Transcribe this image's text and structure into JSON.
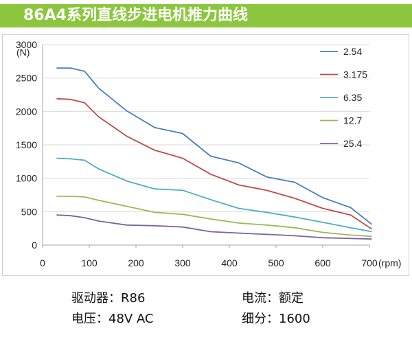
{
  "banner": {
    "title": "86A4系列直线步进电机推力曲线",
    "color": "#8cc63f"
  },
  "chart_data": {
    "type": "line",
    "ylabel": "(N)",
    "xlabel": "(rpm)",
    "xlim": [
      0,
      700
    ],
    "ylim": [
      0,
      3000
    ],
    "x_ticks": [
      0,
      100,
      200,
      300,
      400,
      500,
      600,
      700
    ],
    "y_ticks": [
      0,
      500,
      1000,
      1500,
      2000,
      2500,
      3000
    ],
    "grid": "horizontal",
    "legend": "right",
    "x": [
      30,
      60,
      90,
      120,
      180,
      240,
      300,
      360,
      420,
      480,
      540,
      600,
      660,
      705
    ],
    "series": [
      {
        "name": "2.54",
        "color": "#4a7ebb",
        "values": [
          2650,
          2650,
          2600,
          2350,
          2010,
          1760,
          1670,
          1330,
          1230,
          1020,
          940,
          710,
          560,
          310
        ]
      },
      {
        "name": "3.175",
        "color": "#be4b48",
        "values": [
          2190,
          2180,
          2130,
          1920,
          1630,
          1420,
          1300,
          1060,
          900,
          820,
          700,
          550,
          450,
          240
        ]
      },
      {
        "name": "6.35",
        "color": "#4bacc6",
        "values": [
          1300,
          1290,
          1270,
          1140,
          960,
          840,
          820,
          680,
          550,
          490,
          420,
          340,
          260,
          200
        ]
      },
      {
        "name": "12.7",
        "color": "#98b954",
        "values": [
          730,
          730,
          720,
          670,
          580,
          490,
          460,
          390,
          330,
          300,
          260,
          190,
          150,
          130
        ]
      },
      {
        "name": "25.4",
        "color": "#7e62a1",
        "values": [
          450,
          440,
          410,
          360,
          300,
          290,
          270,
          200,
          180,
          160,
          140,
          110,
          100,
          90
        ]
      }
    ]
  },
  "specs": {
    "driver": "驱动器：R86",
    "current": "电流：额定",
    "voltage": "电压：48V AC",
    "microstep": "细分：1600"
  }
}
